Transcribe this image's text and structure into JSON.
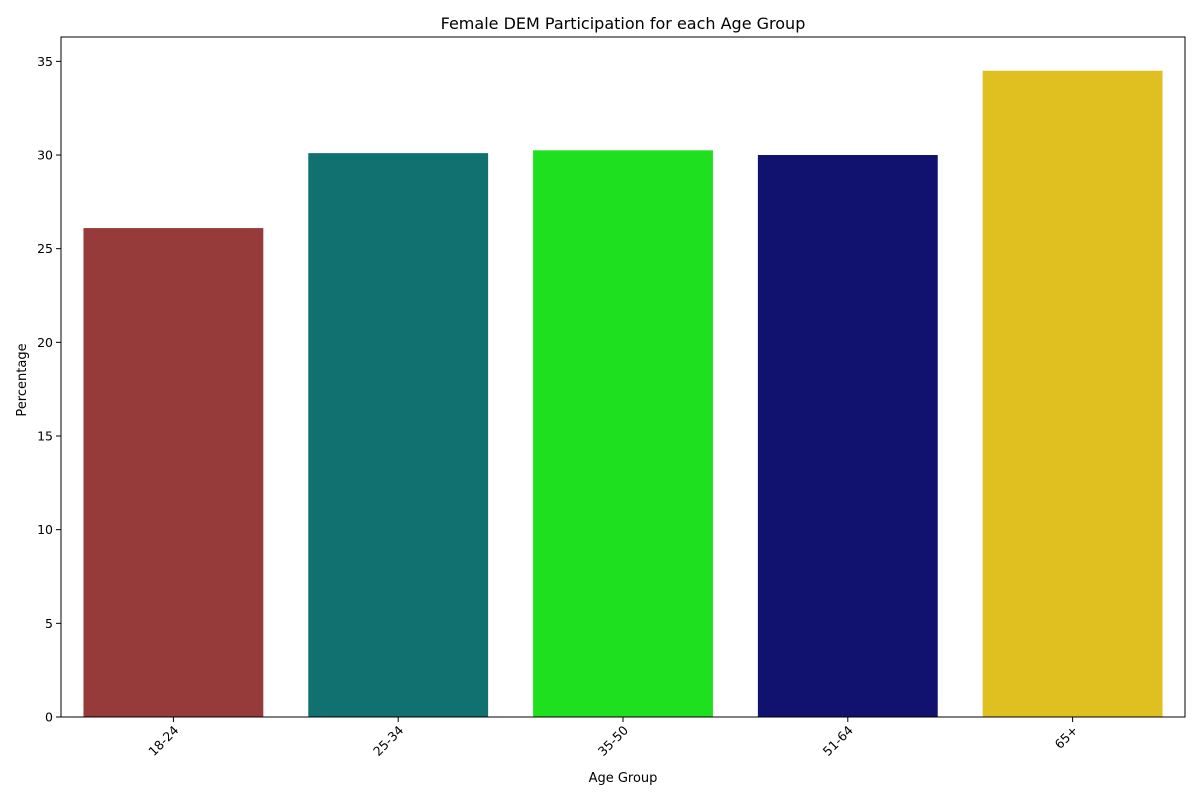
{
  "chart_data": {
    "type": "bar",
    "title": "Female DEM Participation for each Age Group",
    "xlabel": "Age Group",
    "ylabel": "Percentage",
    "categories": [
      "18-24",
      "25-34",
      "35-50",
      "51-64",
      "65+"
    ],
    "values": [
      26.1,
      30.1,
      30.25,
      30.0,
      34.5
    ],
    "colors": [
      "#963a3a",
      "#117070",
      "#1fe01f",
      "#11116f",
      "#e0c020"
    ],
    "ylim": [
      0,
      36.3
    ],
    "yticks": [
      0,
      5,
      10,
      15,
      20,
      25,
      30,
      35
    ],
    "xtick_rotation": 45,
    "grid": false,
    "legend": "none"
  }
}
